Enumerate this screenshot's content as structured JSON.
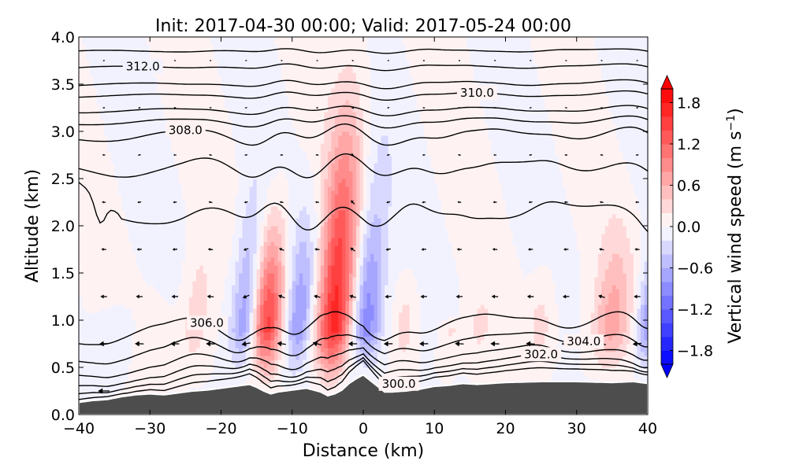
{
  "chart_data": {
    "type": "heatmap",
    "subtype": "vertical cross-section (filled contour + isentropes + wind vectors)",
    "title": "Init: 2017-04-30 00:00; Valid: 2017-05-24 00:00",
    "xlabel": "Distance (km)",
    "ylabel": "Altitude (km)",
    "xlim": [
      -40,
      40
    ],
    "ylim": [
      0.0,
      4.0
    ],
    "xticks": [
      -40,
      -30,
      -20,
      -10,
      0,
      10,
      20,
      30,
      40
    ],
    "xtick_labels": [
      "−40",
      "−30",
      "−20",
      "−10",
      "0",
      "10",
      "20",
      "30",
      "40"
    ],
    "yticks": [
      0.0,
      0.5,
      1.0,
      1.5,
      2.0,
      2.5,
      3.0,
      3.5,
      4.0
    ],
    "ytick_labels": [
      "0.0",
      "0.5",
      "1.0",
      "1.5",
      "2.0",
      "2.5",
      "3.0",
      "3.5",
      "4.0"
    ],
    "colorbar": {
      "label": "Vertical wind speed (m s⁻¹)",
      "label_main": "Vertical wind speed (m s",
      "label_sup": "−1",
      "label_close": ")",
      "levels_min": -2.0,
      "levels_max": 2.0,
      "level_step": 0.2,
      "extend": "both",
      "ticks": [
        1.8,
        1.2,
        0.6,
        0.0,
        -0.6,
        -1.2,
        -1.8
      ],
      "tick_labels": [
        "1.8",
        "1.2",
        "0.6",
        "0.0",
        "−0.6",
        "−1.2",
        "−1.8"
      ],
      "colormap": "bwr",
      "color_min": "#0000ff",
      "color_mid": "#ffffff",
      "color_max": "#ff0000"
    },
    "terrain": {
      "color": "#4d4d4d",
      "x_km": [
        -40,
        -38,
        -36,
        -34,
        -32,
        -30,
        -28,
        -26,
        -24,
        -22,
        -20,
        -18,
        -16,
        -15,
        -14,
        -13,
        -12,
        -10,
        -8,
        -6,
        -5,
        -4,
        -3,
        -2,
        -1,
        0,
        1,
        2,
        3,
        4,
        6,
        8,
        10,
        12,
        14,
        16,
        20,
        25,
        30,
        35,
        38,
        40
      ],
      "z_km": [
        0.13,
        0.15,
        0.16,
        0.19,
        0.21,
        0.22,
        0.21,
        0.23,
        0.25,
        0.26,
        0.28,
        0.3,
        0.32,
        0.29,
        0.25,
        0.22,
        0.24,
        0.26,
        0.28,
        0.24,
        0.2,
        0.22,
        0.26,
        0.33,
        0.38,
        0.42,
        0.36,
        0.3,
        0.24,
        0.24,
        0.25,
        0.27,
        0.3,
        0.31,
        0.33,
        0.32,
        0.34,
        0.35,
        0.35,
        0.34,
        0.35,
        0.33
      ]
    },
    "vertical_wind_features": [
      {
        "x_km": -14.0,
        "z_top_km": 2.2,
        "width_km": 1.6,
        "w_ms": 1.5
      },
      {
        "x_km": -4.5,
        "z_top_km": 3.3,
        "width_km": 1.8,
        "w_ms": 1.7
      },
      {
        "x_km": -17.0,
        "z_top_km": 2.4,
        "width_km": 1.4,
        "w_ms": -0.9
      },
      {
        "x_km": -9.5,
        "z_top_km": 2.2,
        "width_km": 1.4,
        "w_ms": -0.8
      },
      {
        "x_km": 0.0,
        "z_top_km": 2.6,
        "width_km": 1.5,
        "w_ms": -1.0
      },
      {
        "x_km": -24.0,
        "z_top_km": 2.0,
        "width_km": 1.4,
        "w_ms": 0.35
      },
      {
        "x_km": 34.5,
        "z_top_km": 2.0,
        "width_km": 1.8,
        "w_ms": 0.7
      },
      {
        "x_km": 39.5,
        "z_top_km": 1.8,
        "width_km": 1.0,
        "w_ms": -0.8
      },
      {
        "x_km": 24.5,
        "z_top_km": 1.6,
        "width_km": 1.2,
        "w_ms": 0.3
      },
      {
        "x_km": 16.0,
        "z_top_km": 1.4,
        "width_km": 1.2,
        "w_ms": 0.25
      },
      {
        "x_km": 5.5,
        "z_top_km": 1.5,
        "width_km": 1.0,
        "w_ms": 0.3
      },
      {
        "x_km": 12.0,
        "z_top_km": 1.0,
        "width_km": 1.0,
        "w_ms": 0.25
      },
      {
        "x_km": -35.0,
        "z_top_km": 1.2,
        "width_km": 2.0,
        "w_ms": -0.15
      },
      {
        "x_km": -30.0,
        "z_top_km": 1.4,
        "width_km": 2.0,
        "w_ms": 0.1
      }
    ],
    "isentropes": {
      "units": "K",
      "labeled": [
        {
          "value": 312.0,
          "label": "312.0",
          "x_km": -31
        },
        {
          "value": 310.0,
          "label": "310.0",
          "x_km": 16
        },
        {
          "value": 308.0,
          "label": "308.0",
          "x_km": -25
        },
        {
          "value": 306.0,
          "label": "306.0",
          "x_km": -22
        },
        {
          "value": 304.0,
          "label": "304.0",
          "x_km": 31
        },
        {
          "value": 302.0,
          "label": "302.0",
          "x_km": 25
        },
        {
          "value": 300.0,
          "label": "300.0",
          "x_km": 5
        }
      ],
      "lines": [
        {
          "base_km": 3.85,
          "amp": 0.05
        },
        {
          "base_km": 3.68,
          "amp": 0.06
        },
        {
          "base_km": 3.5,
          "amp": 0.07
        },
        {
          "base_km": 3.38,
          "amp": 0.07
        },
        {
          "base_km": 3.22,
          "amp": 0.08
        },
        {
          "base_km": 3.1,
          "amp": 0.1
        },
        {
          "base_km": 2.95,
          "amp": 0.18
        },
        {
          "base_km": 2.6,
          "amp": 0.25
        },
        {
          "base_km": 2.1,
          "amp": 0.35
        },
        {
          "base_km": 0.9,
          "amp": 0.3
        },
        {
          "base_km": 0.7,
          "amp": 0.25
        },
        {
          "base_km": 0.55,
          "amp": 0.2
        },
        {
          "base_km": 0.45,
          "amp": 0.15
        },
        {
          "base_km": 0.38,
          "amp": 0.1
        },
        {
          "base_km": 0.32,
          "amp": 0.05
        }
      ]
    },
    "wind_vectors": {
      "description": "Easterly (leftward) flow near the surface, weakening aloft; deflected vertically in the updraft/downdraft columns",
      "x_spacing_km": 5,
      "z_spacing_km": 0.5
    }
  }
}
